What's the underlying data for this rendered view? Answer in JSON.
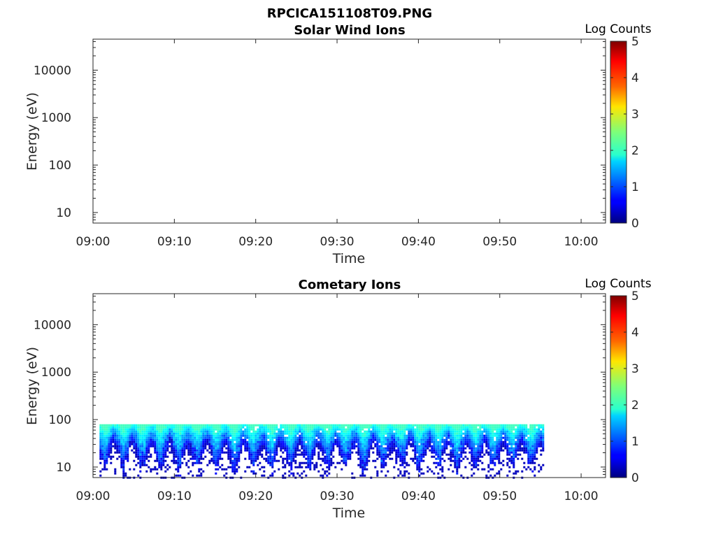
{
  "figure_title": "RPCICA151108T09.PNG",
  "chart_data": [
    {
      "type": "heatmap",
      "title": "Solar Wind Ions",
      "xlabel": "Time",
      "ylabel": "Energy (eV)",
      "x_ticks": [
        "09:00",
        "09:10",
        "09:20",
        "09:30",
        "09:40",
        "09:50",
        "10:00"
      ],
      "xlim_minutes": [
        0,
        63
      ],
      "y_scale": "log",
      "y_ticks": [
        10,
        100,
        1000,
        10000
      ],
      "y_tick_labels": [
        "10",
        "100",
        "1000",
        "10000"
      ],
      "ylim": [
        6,
        45000
      ],
      "colorbar": {
        "label": "Log Counts",
        "min": 0,
        "max": 5,
        "ticks": [
          "0",
          "1",
          "2",
          "3",
          "4",
          "5"
        ],
        "colormap": "jet"
      },
      "data": "empty"
    },
    {
      "type": "heatmap",
      "title": "Cometary Ions",
      "xlabel": "Time",
      "ylabel": "Energy (eV)",
      "x_ticks": [
        "09:00",
        "09:10",
        "09:20",
        "09:30",
        "09:40",
        "09:50",
        "10:00"
      ],
      "xlim_minutes": [
        0,
        63
      ],
      "y_scale": "log",
      "y_ticks": [
        10,
        100,
        1000,
        10000
      ],
      "y_tick_labels": [
        "10",
        "100",
        "1000",
        "10000"
      ],
      "ylim": [
        6,
        45000
      ],
      "colorbar": {
        "label": "Log Counts",
        "min": 0,
        "max": 5,
        "ticks": [
          "0",
          "1",
          "2",
          "3",
          "4",
          "5"
        ],
        "colormap": "jet"
      },
      "data": {
        "time_range": [
          "09:00",
          "09:55"
        ],
        "energy_range_eV": [
          6,
          80
        ],
        "log_counts_range": [
          0.3,
          2.2
        ]
      }
    }
  ]
}
